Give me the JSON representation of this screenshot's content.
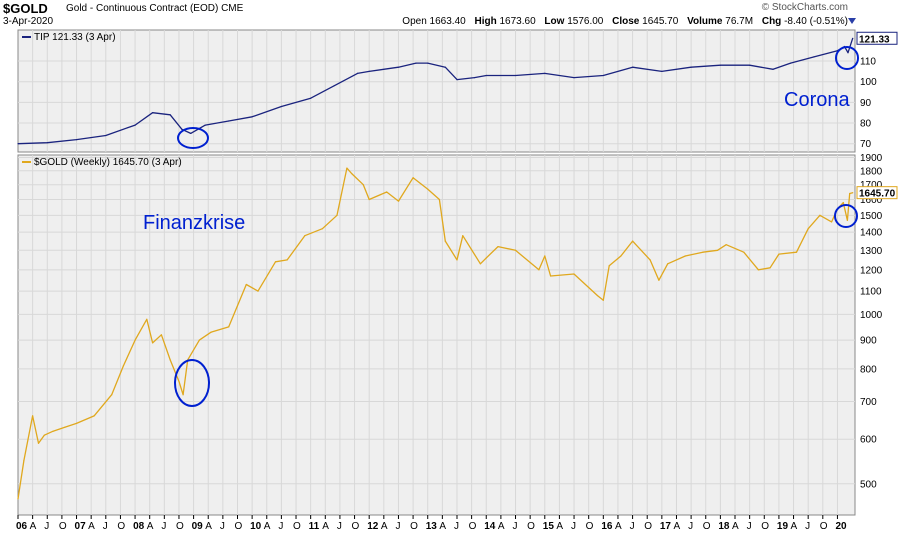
{
  "header": {
    "symbol": "$GOLD",
    "name": "Gold - Continuous Contract (EOD)",
    "exchange": "CME",
    "date": "3-Apr-2020",
    "brand": "© StockCharts.com",
    "open_label": "Open",
    "open": "1663.40",
    "high_label": "High",
    "high": "1673.60",
    "low_label": "Low",
    "low": "1576.00",
    "close_label": "Close",
    "close": "1645.70",
    "volume_label": "Volume",
    "volume": "76.7M",
    "chg_label": "Chg",
    "chg": "-8.40 (-0.51%)"
  },
  "colors": {
    "tip": "#1a237e",
    "gold": "#e0a81e",
    "annotation": "#0020d0",
    "panel_bg": "#efefef"
  },
  "chart_data": [
    {
      "type": "line",
      "legend": "TIP 121.33 (3 Apr)",
      "last_value_label": "121.33",
      "ylim": [
        66,
        125
      ],
      "y_ticks": [
        70,
        80,
        90,
        100,
        110
      ],
      "series": [
        {
          "x": [
            2006.0,
            2006.5,
            2007.0,
            2007.5,
            2008.0,
            2008.3,
            2008.6,
            2008.8,
            2008.95,
            2009.2,
            2009.6,
            2010.0,
            2010.5,
            2011.0,
            2011.4,
            2011.8,
            2012.0,
            2012.5,
            2012.8,
            2013.0,
            2013.3,
            2013.5,
            2013.8,
            2014.0,
            2014.5,
            2015.0,
            2015.5,
            2016.0,
            2016.5,
            2017.0,
            2017.5,
            2018.0,
            2018.5,
            2018.9,
            2019.2,
            2019.6,
            2020.0,
            2020.12,
            2020.18,
            2020.26
          ],
          "values": [
            70,
            70.5,
            72,
            74,
            79,
            85,
            84,
            77,
            75,
            79,
            81,
            83,
            88,
            92,
            98,
            104,
            105,
            107,
            109,
            109,
            107,
            101,
            102,
            103,
            103,
            104,
            102,
            103,
            107,
            105,
            107,
            108,
            108,
            106,
            109,
            112,
            115,
            117,
            114,
            121
          ]
        }
      ]
    },
    {
      "type": "line",
      "legend": "$GOLD (Weekly) 1645.70 (3 Apr)",
      "last_value_label": "1645.70",
      "scale": "log",
      "ylim": [
        440,
        1920
      ],
      "y_ticks": [
        500,
        600,
        700,
        800,
        900,
        1000,
        1100,
        1200,
        1300,
        1400,
        1500,
        1600,
        1700,
        1800,
        1900
      ],
      "x_tick_labels": [
        "06",
        "A",
        "J",
        "O",
        "07",
        "A",
        "J",
        "O",
        "08",
        "A",
        "J",
        "O",
        "09",
        "A",
        "J",
        "O",
        "10",
        "A",
        "J",
        "O",
        "11",
        "A",
        "J",
        "O",
        "12",
        "A",
        "J",
        "O",
        "13",
        "A",
        "J",
        "O",
        "14",
        "A",
        "J",
        "O",
        "15",
        "A",
        "J",
        "O",
        "16",
        "A",
        "J",
        "O",
        "17",
        "A",
        "J",
        "O",
        "18",
        "A",
        "J",
        "O",
        "19",
        "A",
        "J",
        "O",
        "20"
      ],
      "series": [
        {
          "x": [
            2006.0,
            2006.1,
            2006.25,
            2006.35,
            2006.45,
            2006.6,
            2006.8,
            2007.0,
            2007.3,
            2007.6,
            2007.8,
            2008.0,
            2008.2,
            2008.3,
            2008.45,
            2008.6,
            2008.75,
            2008.82,
            2008.9,
            2009.1,
            2009.3,
            2009.6,
            2009.9,
            2010.1,
            2010.4,
            2010.6,
            2010.9,
            2011.2,
            2011.45,
            2011.62,
            2011.7,
            2011.9,
            2012.0,
            2012.3,
            2012.5,
            2012.75,
            2013.0,
            2013.2,
            2013.3,
            2013.5,
            2013.6,
            2013.9,
            2014.0,
            2014.2,
            2014.5,
            2014.9,
            2015.0,
            2015.1,
            2015.5,
            2015.9,
            2016.0,
            2016.1,
            2016.3,
            2016.5,
            2016.8,
            2016.95,
            2017.1,
            2017.4,
            2017.7,
            2017.95,
            2018.1,
            2018.4,
            2018.65,
            2018.85,
            2019.0,
            2019.3,
            2019.5,
            2019.7,
            2019.9,
            2020.0,
            2020.1,
            2020.17,
            2020.21,
            2020.26
          ],
          "values": [
            470,
            550,
            660,
            590,
            610,
            620,
            630,
            640,
            660,
            720,
            810,
            900,
            980,
            890,
            920,
            830,
            760,
            720,
            830,
            900,
            930,
            950,
            1130,
            1100,
            1240,
            1250,
            1380,
            1420,
            1500,
            1820,
            1780,
            1700,
            1600,
            1650,
            1590,
            1750,
            1670,
            1600,
            1350,
            1250,
            1380,
            1230,
            1260,
            1320,
            1300,
            1200,
            1270,
            1170,
            1180,
            1080,
            1060,
            1220,
            1270,
            1350,
            1250,
            1150,
            1230,
            1270,
            1290,
            1300,
            1330,
            1290,
            1200,
            1210,
            1280,
            1290,
            1420,
            1500,
            1460,
            1540,
            1580,
            1470,
            1640,
            1645.7
          ]
        }
      ]
    }
  ],
  "annotations": {
    "finanzkrise": "Finanzkrise",
    "corona": "Corona"
  }
}
